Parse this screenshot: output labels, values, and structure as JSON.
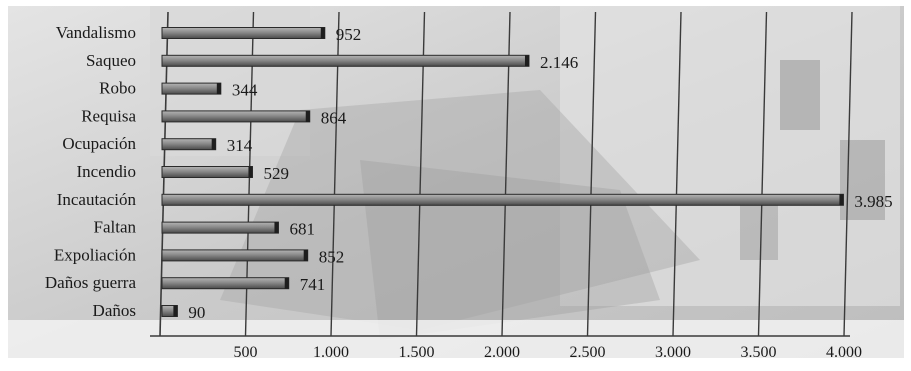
{
  "chart_data": {
    "type": "bar",
    "orientation": "horizontal",
    "categories": [
      "Vandalismo",
      "Saqueo",
      "Robo",
      "Requisa",
      "Ocupación",
      "Incendio",
      "Incautación",
      "Faltan",
      "Expoliación",
      "Daños guerra",
      "Daños"
    ],
    "values": [
      952,
      2146,
      344,
      864,
      314,
      529,
      3985,
      681,
      852,
      741,
      90
    ],
    "value_labels": [
      "952",
      "2.146",
      "344",
      "864",
      "314",
      "529",
      "3.985",
      "681",
      "852",
      "741",
      "90"
    ],
    "x_ticks": [
      500,
      1000,
      1500,
      2000,
      2500,
      3000,
      3500,
      4000
    ],
    "x_tick_labels": [
      "500",
      "1.000",
      "1.500",
      "2.000",
      "2.500",
      "3.000",
      "3.500",
      "4.000"
    ],
    "xlim": [
      0,
      4000
    ],
    "grid": "vertical",
    "legend": "none",
    "title": "",
    "xlabel": "",
    "ylabel": "",
    "colors": {
      "bar_fill": "#8a8a8a",
      "bar_edge": "#2a2a2a",
      "gridline": "#3a3a3a",
      "text": "#1a1a1a",
      "background_photo": "#cfcfcf"
    }
  }
}
